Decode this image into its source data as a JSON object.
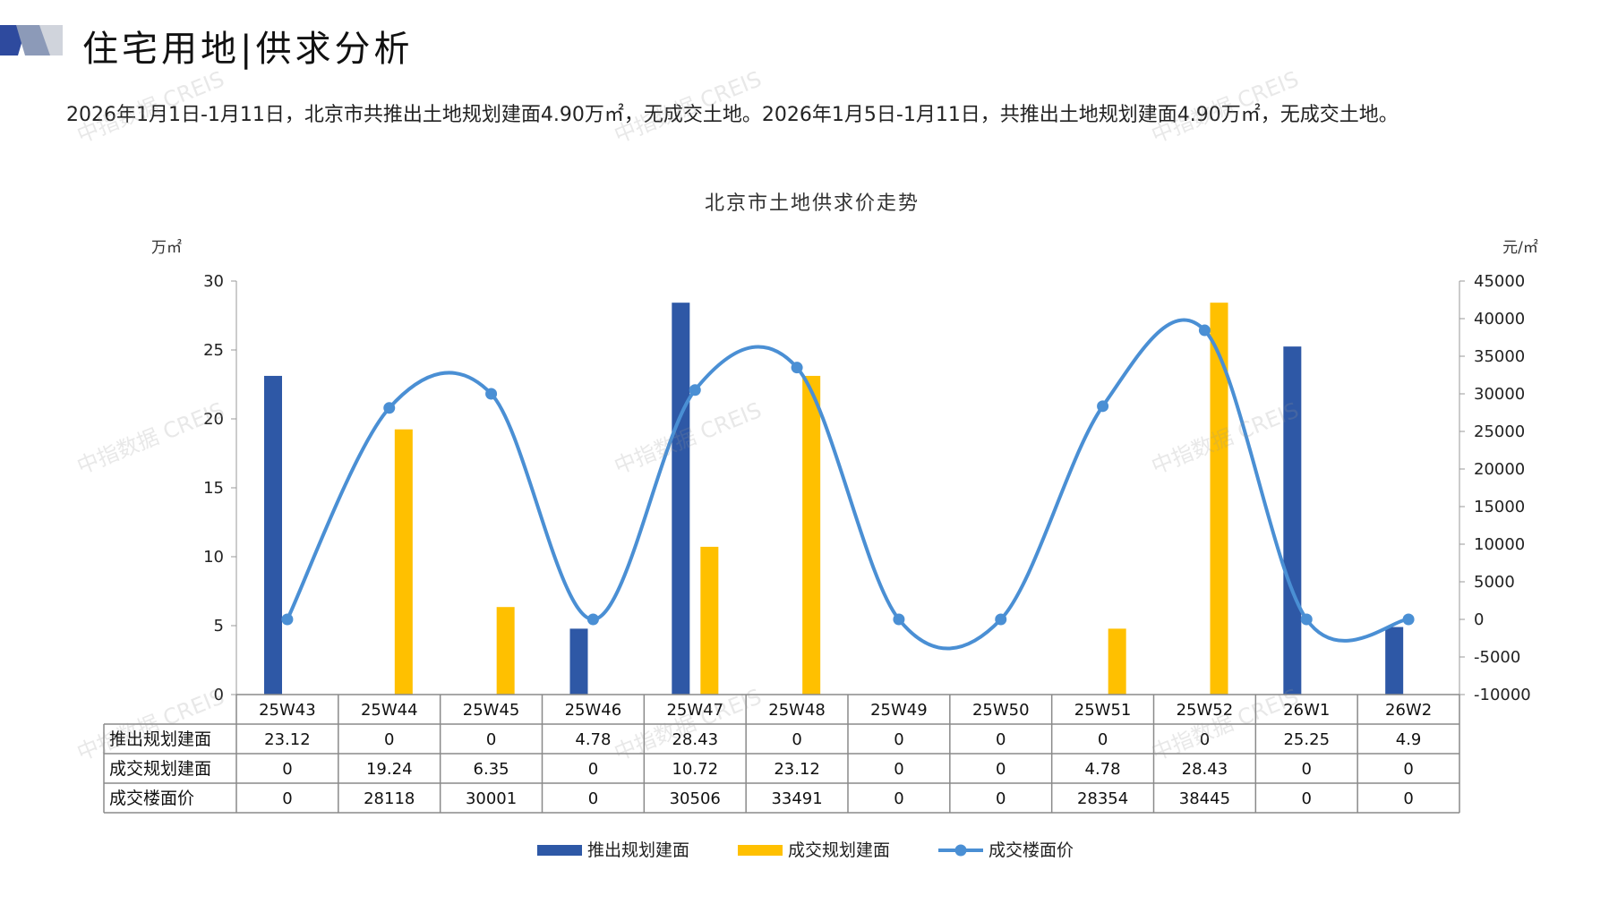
{
  "header": {
    "title": "住宅用地|供求分析"
  },
  "summary": {
    "text": "2026年1月1日-1月11日，北京市共推出土地规划建面4.90万㎡，无成交土地。2026年1月5日-1月11日，共推出土地规划建面4.90万㎡，无成交土地。"
  },
  "watermark": {
    "text": "中指数据 CREIS"
  },
  "colors": {
    "supply": "#2E58A6",
    "deal": "#FFC000",
    "price": "#4A8FD4",
    "accent": "#2E4A9E"
  },
  "chart_data": {
    "type": "bar",
    "title": "北京市土地供求价走势",
    "ylabel_left": "万㎡",
    "ylabel_right": "元/㎡",
    "ylim_left": [
      0,
      30
    ],
    "yticks_left": [
      0,
      5,
      10,
      15,
      20,
      25,
      30
    ],
    "ylim_right": [
      -10000,
      45000
    ],
    "yticks_right": [
      -10000,
      -5000,
      0,
      5000,
      10000,
      15000,
      20000,
      25000,
      30000,
      35000,
      40000,
      45000
    ],
    "categories": [
      "25W43",
      "25W44",
      "25W45",
      "25W46",
      "25W47",
      "25W48",
      "25W49",
      "25W50",
      "25W51",
      "25W52",
      "26W1",
      "26W2"
    ],
    "series": [
      {
        "name": "推出规划建面",
        "type": "bar",
        "axis": "left",
        "values": [
          23.12,
          0,
          0,
          4.78,
          28.43,
          0,
          0,
          0,
          0,
          0,
          25.25,
          4.9
        ],
        "labels": [
          "23.12",
          "0",
          "0",
          "4.78",
          "28.43",
          "0",
          "0",
          "0",
          "0",
          "0",
          "25.25",
          "4.9"
        ]
      },
      {
        "name": "成交规划建面",
        "type": "bar",
        "axis": "left",
        "values": [
          0,
          19.24,
          6.35,
          0,
          10.72,
          23.12,
          0,
          0,
          4.78,
          28.43,
          0,
          0
        ],
        "labels": [
          "0",
          "19.24",
          "6.35",
          "0",
          "10.72",
          "23.12",
          "0",
          "0",
          "4.78",
          "28.43",
          "0",
          "0"
        ]
      },
      {
        "name": "成交楼面价",
        "type": "line",
        "axis": "right",
        "values": [
          0,
          28118,
          30001,
          0,
          30506,
          33491,
          0,
          0,
          28354,
          38445,
          0,
          0
        ],
        "labels": [
          "0",
          "28118",
          "30001",
          "0",
          "30506",
          "33491",
          "0",
          "0",
          "28354",
          "38445",
          "0",
          "0"
        ]
      }
    ],
    "legend_position": "bottom",
    "grid": false,
    "data_table": true
  }
}
